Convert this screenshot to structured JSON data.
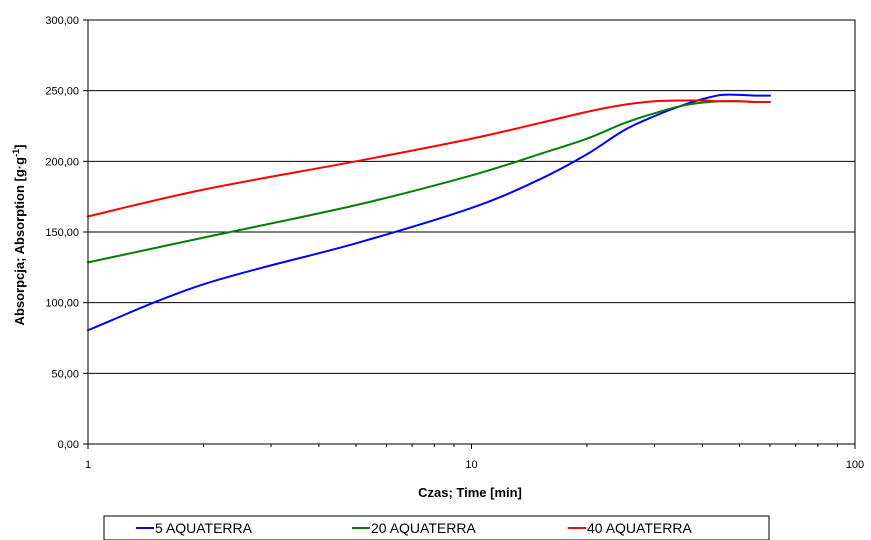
{
  "chart_data": {
    "type": "line",
    "title": "",
    "xlabel": "Czas; Time [min]",
    "ylabel": "Absorpcja; Absorption [g·g",
    "ylabel_superscript": "-1",
    "ylabel_suffix": "]",
    "x_scale": "log",
    "xlim": [
      1,
      100
    ],
    "ylim": [
      0,
      300
    ],
    "x_ticks": [
      1,
      10,
      100
    ],
    "x_tick_labels": [
      "1",
      "10",
      "100"
    ],
    "y_ticks": [
      0,
      50,
      100,
      150,
      200,
      250,
      300
    ],
    "y_tick_labels": [
      "0,00",
      "50,00",
      "100,00",
      "150,00",
      "200,00",
      "250,00",
      "300,00"
    ],
    "grid": "horizontal",
    "legend_position": "bottom",
    "series": [
      {
        "name": "5 AQUATERRA",
        "color": "#0000ff",
        "x": [
          1,
          2,
          5,
          10,
          15,
          20,
          25,
          30,
          35,
          40,
          45,
          50,
          55,
          60
        ],
        "y": [
          80.5,
          113,
          142,
          167,
          187,
          205,
          222,
          232,
          239,
          244,
          247,
          247,
          246.5,
          246.5
        ]
      },
      {
        "name": "20 AQUATERRA",
        "color": "#008000",
        "x": [
          1,
          2,
          5,
          10,
          15,
          20,
          25,
          30,
          35,
          40,
          45,
          50,
          55,
          60
        ],
        "y": [
          128.5,
          146,
          169,
          190,
          205,
          216,
          227,
          234,
          239,
          241.5,
          242.5,
          242.5,
          242,
          242
        ]
      },
      {
        "name": "40 AQUATERRA",
        "color": "#ff0000",
        "x": [
          1,
          2,
          5,
          10,
          15,
          20,
          25,
          30,
          35,
          40,
          45,
          50,
          55,
          60
        ],
        "y": [
          161,
          180,
          200,
          216,
          227,
          235,
          240,
          242.5,
          243,
          243,
          242.5,
          242.5,
          242,
          242
        ]
      }
    ]
  }
}
